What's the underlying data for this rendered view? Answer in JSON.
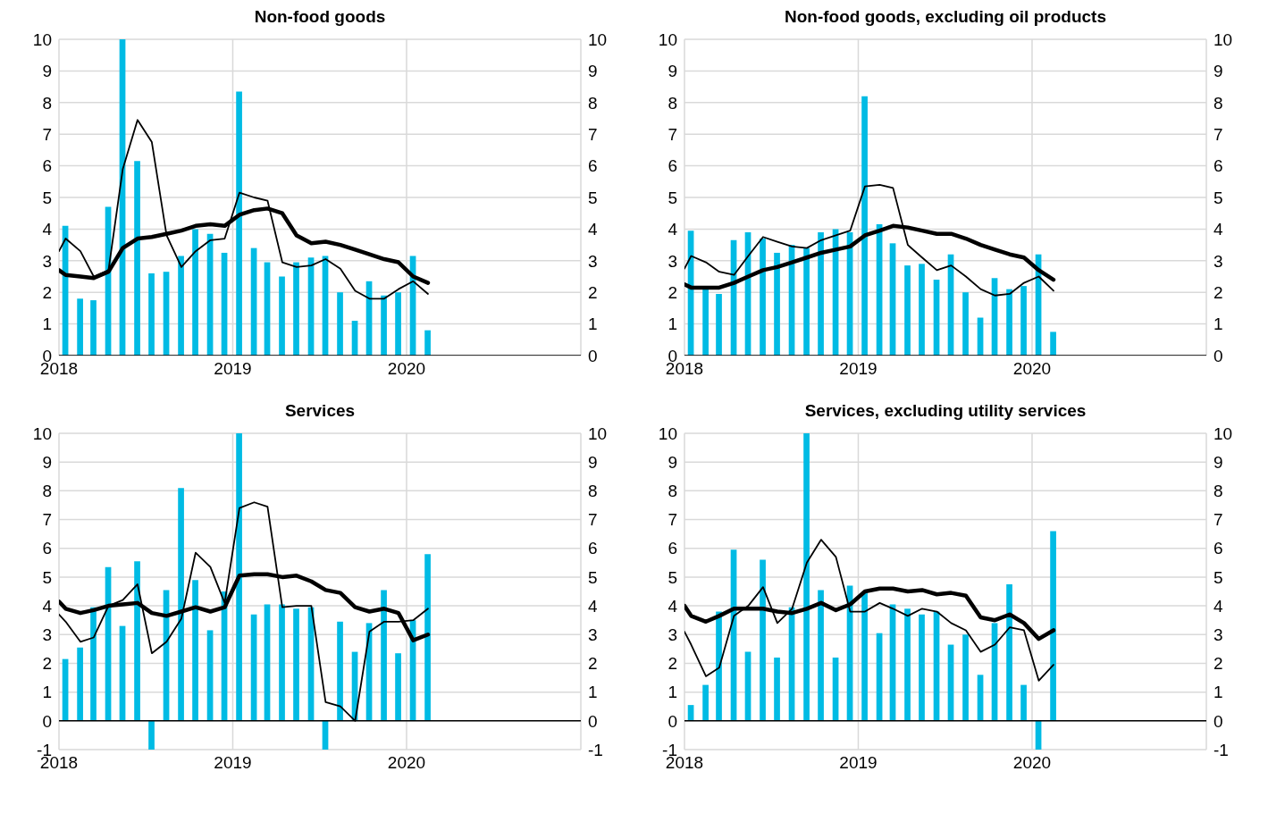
{
  "chart_data": [
    {
      "type": "bar",
      "title": "Non-food goods",
      "x": [
        "2018-01-15",
        "2018-02-15",
        "2018-03-15",
        "2018-04-15",
        "2018-05-15",
        "2018-06-15",
        "2018-07-15",
        "2018-08-15",
        "2018-09-15",
        "2018-10-15",
        "2018-11-15",
        "2018-12-15",
        "2019-01-15",
        "2019-02-15",
        "2019-03-15",
        "2019-04-15",
        "2019-05-15",
        "2019-06-15",
        "2019-07-15",
        "2019-08-15",
        "2019-09-15",
        "2019-10-15",
        "2019-11-15",
        "2019-12-15",
        "2020-01-15",
        "2020-02-15"
      ],
      "series": [
        {
          "color": "#00bbe4",
          "values": [
            4.1,
            1.8,
            1.75,
            4.7,
            10,
            6.15,
            2.6,
            2.65,
            3.15,
            4.0,
            3.85,
            3.25,
            8.35,
            3.4,
            2.95,
            2.5,
            2.95,
            3.1,
            3.15,
            2.0,
            1.1,
            2.35,
            1.9,
            2.0,
            3.15,
            0.8
          ]
        },
        {
          "type": "line",
          "color": "#000000",
          "x": [
            "2018-01-01",
            "2018-01-15",
            "2018-02-15",
            "2018-03-15",
            "2018-04-15",
            "2018-05-15",
            "2018-06-15",
            "2018-07-15",
            "2018-08-15",
            "2018-09-15",
            "2018-10-15",
            "2018-11-15",
            "2018-12-15",
            "2019-01-15",
            "2019-02-15",
            "2019-03-15",
            "2019-04-15",
            "2019-05-15",
            "2019-06-15",
            "2019-07-15",
            "2019-08-15",
            "2019-09-15",
            "2019-10-15",
            "2019-11-15",
            "2019-12-15",
            "2020-01-15",
            "2020-02-15"
          ],
          "values": [
            3.3,
            3.7,
            3.3,
            2.5,
            2.7,
            5.9,
            7.45,
            6.75,
            3.8,
            2.8,
            3.3,
            3.65,
            3.7,
            5.15,
            5.0,
            4.9,
            2.95,
            2.8,
            2.85,
            3.05,
            2.75,
            2.05,
            1.8,
            1.8,
            2.1,
            2.35,
            1.95
          ]
        },
        {
          "type": "line",
          "color": "#000000",
          "x": [
            "2018-01-01",
            "2018-01-15",
            "2018-02-15",
            "2018-03-15",
            "2018-04-15",
            "2018-05-15",
            "2018-06-15",
            "2018-07-15",
            "2018-08-15",
            "2018-09-15",
            "2018-10-15",
            "2018-11-15",
            "2018-12-15",
            "2019-01-15",
            "2019-02-15",
            "2019-03-15",
            "2019-04-15",
            "2019-05-15",
            "2019-06-15",
            "2019-07-15",
            "2019-08-15",
            "2019-09-15",
            "2019-10-15",
            "2019-11-15",
            "2019-12-15",
            "2020-01-15",
            "2020-02-15"
          ],
          "values": [
            2.7,
            2.55,
            2.5,
            2.45,
            2.65,
            3.4,
            3.7,
            3.75,
            3.85,
            3.95,
            4.1,
            4.15,
            4.1,
            4.45,
            4.6,
            4.65,
            4.5,
            3.8,
            3.55,
            3.6,
            3.5,
            3.35,
            3.2,
            3.05,
            2.95,
            2.5,
            2.3
          ]
        }
      ],
      "xlim": [
        "2018-01-01",
        "2021-01-01"
      ],
      "xticks": [
        {
          "value": "2018-01-01",
          "label": "2018"
        },
        {
          "value": "2019-01-01",
          "label": "2019"
        },
        {
          "value": "2020-01-01",
          "label": "2020"
        },
        {
          "value": "2021-01-01",
          "label": null
        }
      ],
      "ylim": [
        0,
        10
      ],
      "yticks": [
        0,
        1,
        2,
        3,
        4,
        5,
        6,
        7,
        8,
        9,
        10
      ],
      "y2lim": [
        0,
        10
      ],
      "y2ticks": [
        0,
        1,
        2,
        3,
        4,
        5,
        6,
        7,
        8,
        9,
        10
      ],
      "grid": true
    },
    {
      "type": "bar",
      "title": "Non-food goods, excluding oil products",
      "x": [
        "2018-01-15",
        "2018-02-15",
        "2018-03-15",
        "2018-04-15",
        "2018-05-15",
        "2018-06-15",
        "2018-07-15",
        "2018-08-15",
        "2018-09-15",
        "2018-10-15",
        "2018-11-15",
        "2018-12-15",
        "2019-01-15",
        "2019-02-15",
        "2019-03-15",
        "2019-04-15",
        "2019-05-15",
        "2019-06-15",
        "2019-07-15",
        "2019-08-15",
        "2019-09-15",
        "2019-10-15",
        "2019-11-15",
        "2019-12-15",
        "2020-01-15",
        "2020-02-15"
      ],
      "series": [
        {
          "color": "#00bbe4",
          "values": [
            3.95,
            2.1,
            1.95,
            3.65,
            3.9,
            3.7,
            3.25,
            3.5,
            3.4,
            3.9,
            4.0,
            3.9,
            8.2,
            4.15,
            3.55,
            2.85,
            2.9,
            2.4,
            3.2,
            2.0,
            1.2,
            2.45,
            2.1,
            2.2,
            3.2,
            0.75
          ]
        },
        {
          "type": "line",
          "color": "#000000",
          "x": [
            "2018-01-01",
            "2018-01-15",
            "2018-02-15",
            "2018-03-15",
            "2018-04-15",
            "2018-05-15",
            "2018-06-15",
            "2018-07-15",
            "2018-08-15",
            "2018-09-15",
            "2018-10-15",
            "2018-11-15",
            "2018-12-15",
            "2019-01-15",
            "2019-02-15",
            "2019-03-15",
            "2019-04-15",
            "2019-05-15",
            "2019-06-15",
            "2019-07-15",
            "2019-08-15",
            "2019-09-15",
            "2019-10-15",
            "2019-11-15",
            "2019-12-15",
            "2020-01-15",
            "2020-02-15"
          ],
          "values": [
            2.75,
            3.15,
            2.95,
            2.65,
            2.55,
            3.15,
            3.75,
            3.6,
            3.45,
            3.4,
            3.65,
            3.8,
            3.95,
            5.35,
            5.4,
            5.3,
            3.5,
            3.1,
            2.7,
            2.85,
            2.5,
            2.1,
            1.9,
            1.95,
            2.3,
            2.5,
            2.05
          ]
        },
        {
          "type": "line",
          "color": "#000000",
          "x": [
            "2018-01-01",
            "2018-01-15",
            "2018-02-15",
            "2018-03-15",
            "2018-04-15",
            "2018-05-15",
            "2018-06-15",
            "2018-07-15",
            "2018-08-15",
            "2018-09-15",
            "2018-10-15",
            "2018-11-15",
            "2018-12-15",
            "2019-01-15",
            "2019-02-15",
            "2019-03-15",
            "2019-04-15",
            "2019-05-15",
            "2019-06-15",
            "2019-07-15",
            "2019-08-15",
            "2019-09-15",
            "2019-10-15",
            "2019-11-15",
            "2019-12-15",
            "2020-01-15",
            "2020-02-15"
          ],
          "values": [
            2.25,
            2.15,
            2.15,
            2.15,
            2.3,
            2.5,
            2.7,
            2.8,
            2.95,
            3.1,
            3.25,
            3.35,
            3.45,
            3.8,
            3.95,
            4.1,
            4.05,
            3.95,
            3.85,
            3.85,
            3.7,
            3.5,
            3.35,
            3.2,
            3.1,
            2.7,
            2.4
          ]
        }
      ],
      "xlim": [
        "2018-01-01",
        "2021-01-01"
      ],
      "xticks": [
        {
          "value": "2018-01-01",
          "label": "2018"
        },
        {
          "value": "2019-01-01",
          "label": "2019"
        },
        {
          "value": "2020-01-01",
          "label": "2020"
        },
        {
          "value": "2021-01-01",
          "label": null
        }
      ],
      "ylim": [
        0,
        10
      ],
      "yticks": [
        0,
        1,
        2,
        3,
        4,
        5,
        6,
        7,
        8,
        9,
        10
      ],
      "y2lim": [
        0,
        10
      ],
      "y2ticks": [
        0,
        1,
        2,
        3,
        4,
        5,
        6,
        7,
        8,
        9,
        10
      ],
      "grid": true
    },
    {
      "type": "bar",
      "title": "Services",
      "x": [
        "2018-01-15",
        "2018-02-15",
        "2018-03-15",
        "2018-04-15",
        "2018-05-15",
        "2018-06-15",
        "2018-07-15",
        "2018-08-15",
        "2018-09-15",
        "2018-10-15",
        "2018-11-15",
        "2018-12-15",
        "2019-01-15",
        "2019-02-15",
        "2019-03-15",
        "2019-04-15",
        "2019-05-15",
        "2019-06-15",
        "2019-07-15",
        "2019-08-15",
        "2019-09-15",
        "2019-10-15",
        "2019-11-15",
        "2019-12-15",
        "2020-01-15",
        "2020-02-15"
      ],
      "series": [
        {
          "color": "#00bbe4",
          "values": [
            2.15,
            2.55,
            3.95,
            5.35,
            3.3,
            5.55,
            -1,
            4.55,
            8.1,
            4.9,
            3.15,
            4.5,
            10,
            3.7,
            4.05,
            4.05,
            3.9,
            3.95,
            -1,
            3.45,
            2.4,
            3.4,
            4.55,
            2.35,
            3.5,
            5.8
          ]
        },
        {
          "type": "line",
          "color": "#000000",
          "x": [
            "2018-01-01",
            "2018-01-15",
            "2018-02-15",
            "2018-03-15",
            "2018-04-15",
            "2018-05-15",
            "2018-06-15",
            "2018-07-15",
            "2018-08-15",
            "2018-09-15",
            "2018-10-15",
            "2018-11-15",
            "2018-12-15",
            "2019-01-15",
            "2019-02-15",
            "2019-03-15",
            "2019-04-15",
            "2019-05-15",
            "2019-06-15",
            "2019-07-15",
            "2019-08-15",
            "2019-09-15",
            "2019-10-15",
            "2019-11-15",
            "2019-12-15",
            "2020-01-15",
            "2020-02-15"
          ],
          "values": [
            3.7,
            3.45,
            2.75,
            2.9,
            4.0,
            4.2,
            4.75,
            2.35,
            2.75,
            3.55,
            5.85,
            5.35,
            4.1,
            7.4,
            7.6,
            7.45,
            3.95,
            4.0,
            4.0,
            0.65,
            0.5,
            0.0,
            3.1,
            3.45,
            3.45,
            3.5,
            3.9
          ]
        },
        {
          "type": "line",
          "color": "#000000",
          "x": [
            "2018-01-01",
            "2018-01-15",
            "2018-02-15",
            "2018-03-15",
            "2018-04-15",
            "2018-05-15",
            "2018-06-15",
            "2018-07-15",
            "2018-08-15",
            "2018-09-15",
            "2018-10-15",
            "2018-11-15",
            "2018-12-15",
            "2019-01-15",
            "2019-02-15",
            "2019-03-15",
            "2019-04-15",
            "2019-05-15",
            "2019-06-15",
            "2019-07-15",
            "2019-08-15",
            "2019-09-15",
            "2019-10-15",
            "2019-11-15",
            "2019-12-15",
            "2020-01-15",
            "2020-02-15"
          ],
          "values": [
            4.15,
            3.9,
            3.75,
            3.85,
            4.0,
            4.05,
            4.1,
            3.75,
            3.65,
            3.8,
            3.95,
            3.8,
            3.95,
            5.05,
            5.1,
            5.1,
            5.0,
            5.05,
            4.85,
            4.55,
            4.45,
            3.95,
            3.8,
            3.9,
            3.75,
            2.8,
            3.0
          ]
        }
      ],
      "xlim": [
        "2018-01-01",
        "2021-01-01"
      ],
      "xticks": [
        {
          "value": "2018-01-01",
          "label": "2018"
        },
        {
          "value": "2019-01-01",
          "label": "2019"
        },
        {
          "value": "2020-01-01",
          "label": "2020"
        },
        {
          "value": "2021-01-01",
          "label": null
        }
      ],
      "ylim": [
        -1,
        10
      ],
      "yticks": [
        -1,
        0,
        1,
        2,
        3,
        4,
        5,
        6,
        7,
        8,
        9,
        10
      ],
      "y2lim": [
        -1,
        10
      ],
      "y2ticks": [
        -1,
        0,
        1,
        2,
        3,
        4,
        5,
        6,
        7,
        8,
        9,
        10
      ],
      "grid": true
    },
    {
      "type": "bar",
      "title": "Services, excluding utility services",
      "x": [
        "2018-01-15",
        "2018-02-15",
        "2018-03-15",
        "2018-04-15",
        "2018-05-15",
        "2018-06-15",
        "2018-07-15",
        "2018-08-15",
        "2018-09-15",
        "2018-10-15",
        "2018-11-15",
        "2018-12-15",
        "2019-01-15",
        "2019-02-15",
        "2019-03-15",
        "2019-04-15",
        "2019-05-15",
        "2019-06-15",
        "2019-07-15",
        "2019-08-15",
        "2019-09-15",
        "2019-10-15",
        "2019-11-15",
        "2019-12-15",
        "2020-01-15",
        "2020-02-15"
      ],
      "series": [
        {
          "color": "#00bbe4",
          "values": [
            0.55,
            1.25,
            3.8,
            5.95,
            2.4,
            5.6,
            2.2,
            3.95,
            10,
            4.55,
            2.2,
            4.7,
            4.5,
            3.05,
            4.05,
            3.9,
            3.7,
            3.8,
            2.65,
            3.0,
            1.6,
            3.4,
            4.75,
            1.25,
            -1,
            6.6
          ]
        },
        {
          "type": "line",
          "color": "#000000",
          "x": [
            "2018-01-01",
            "2018-01-15",
            "2018-02-15",
            "2018-03-15",
            "2018-04-15",
            "2018-05-15",
            "2018-06-15",
            "2018-07-15",
            "2018-08-15",
            "2018-09-15",
            "2018-10-15",
            "2018-11-15",
            "2018-12-15",
            "2019-01-15",
            "2019-02-15",
            "2019-03-15",
            "2019-04-15",
            "2019-05-15",
            "2019-06-15",
            "2019-07-15",
            "2019-08-15",
            "2019-09-15",
            "2019-10-15",
            "2019-11-15",
            "2019-12-15",
            "2020-01-15",
            "2020-02-15"
          ],
          "values": [
            3.1,
            2.65,
            1.55,
            1.85,
            3.65,
            4.0,
            4.65,
            3.4,
            3.9,
            5.5,
            6.3,
            5.7,
            3.8,
            3.8,
            4.1,
            3.9,
            3.65,
            3.9,
            3.8,
            3.4,
            3.15,
            2.4,
            2.65,
            3.25,
            3.15,
            1.4,
            1.95
          ]
        },
        {
          "type": "line",
          "color": "#000000",
          "x": [
            "2018-01-01",
            "2018-01-15",
            "2018-02-15",
            "2018-03-15",
            "2018-04-15",
            "2018-05-15",
            "2018-06-15",
            "2018-07-15",
            "2018-08-15",
            "2018-09-15",
            "2018-10-15",
            "2018-11-15",
            "2018-12-15",
            "2019-01-15",
            "2019-02-15",
            "2019-03-15",
            "2019-04-15",
            "2019-05-15",
            "2019-06-15",
            "2019-07-15",
            "2019-08-15",
            "2019-09-15",
            "2019-10-15",
            "2019-11-15",
            "2019-12-15",
            "2020-01-15",
            "2020-02-15"
          ],
          "values": [
            4.0,
            3.65,
            3.45,
            3.65,
            3.9,
            3.9,
            3.9,
            3.8,
            3.75,
            3.9,
            4.1,
            3.85,
            4.05,
            4.5,
            4.6,
            4.6,
            4.5,
            4.55,
            4.4,
            4.45,
            4.35,
            3.6,
            3.5,
            3.7,
            3.4,
            2.85,
            3.15
          ]
        }
      ],
      "xlim": [
        "2018-01-01",
        "2021-01-01"
      ],
      "xticks": [
        {
          "value": "2018-01-01",
          "label": "2018"
        },
        {
          "value": "2019-01-01",
          "label": "2019"
        },
        {
          "value": "2020-01-01",
          "label": "2020"
        },
        {
          "value": "2021-01-01",
          "label": null
        }
      ],
      "ylim": [
        -1,
        10
      ],
      "yticks": [
        -1,
        0,
        1,
        2,
        3,
        4,
        5,
        6,
        7,
        8,
        9,
        10
      ],
      "y2lim": [
        -1,
        10
      ],
      "y2ticks": [
        -1,
        0,
        1,
        2,
        3,
        4,
        5,
        6,
        7,
        8,
        9,
        10
      ],
      "grid": true
    }
  ]
}
